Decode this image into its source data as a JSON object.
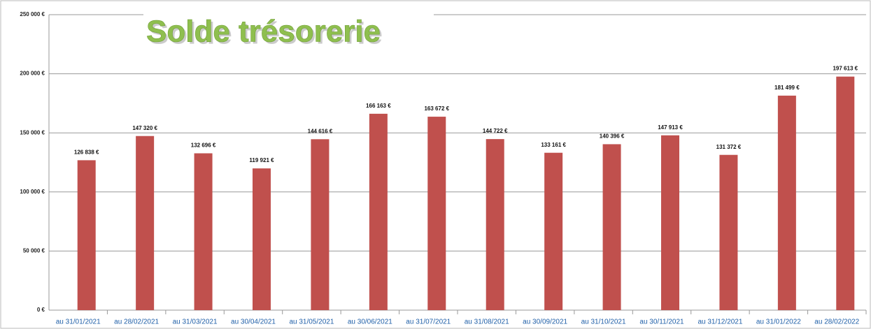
{
  "chart_data": {
    "type": "bar",
    "title": "Solde trésorerie",
    "categories": [
      "au 31/01/2021",
      "au 28/02/2021",
      "au 31/03/2021",
      "au 30/04/2021",
      "au 31/05/2021",
      "au 30/06/2021",
      "au 31/07/2021",
      "au 31/08/2021",
      "au 30/09/2021",
      "au 31/10/2021",
      "au 30/11/2021",
      "au 31/12/2021",
      "au 31/01/2022",
      "au 28/02/2022"
    ],
    "values": [
      126838,
      147320,
      132696,
      119921,
      144616,
      166163,
      163672,
      144722,
      133161,
      140396,
      147913,
      131372,
      181499,
      197613
    ],
    "value_labels": [
      "126 838 €",
      "147 320 €",
      "132 696 €",
      "119 921 €",
      "144 616 €",
      "166 163 €",
      "163 672 €",
      "144 722 €",
      "133 161 €",
      "140 396 €",
      "147 913 €",
      "131 372 €",
      "181 499 €",
      "197 613 €"
    ],
    "color": "#c0504d",
    "ylim": [
      0,
      250000
    ],
    "yticks": [
      {
        "value": 0,
        "label": "0 €"
      },
      {
        "value": 50000,
        "label": "50 000 €"
      },
      {
        "value": 100000,
        "label": "100 000 €"
      },
      {
        "value": 150000,
        "label": "150 000 €"
      },
      {
        "value": 200000,
        "label": "200 000 €"
      },
      {
        "value": 250000,
        "label": "250 000 €"
      }
    ],
    "grid": true
  }
}
